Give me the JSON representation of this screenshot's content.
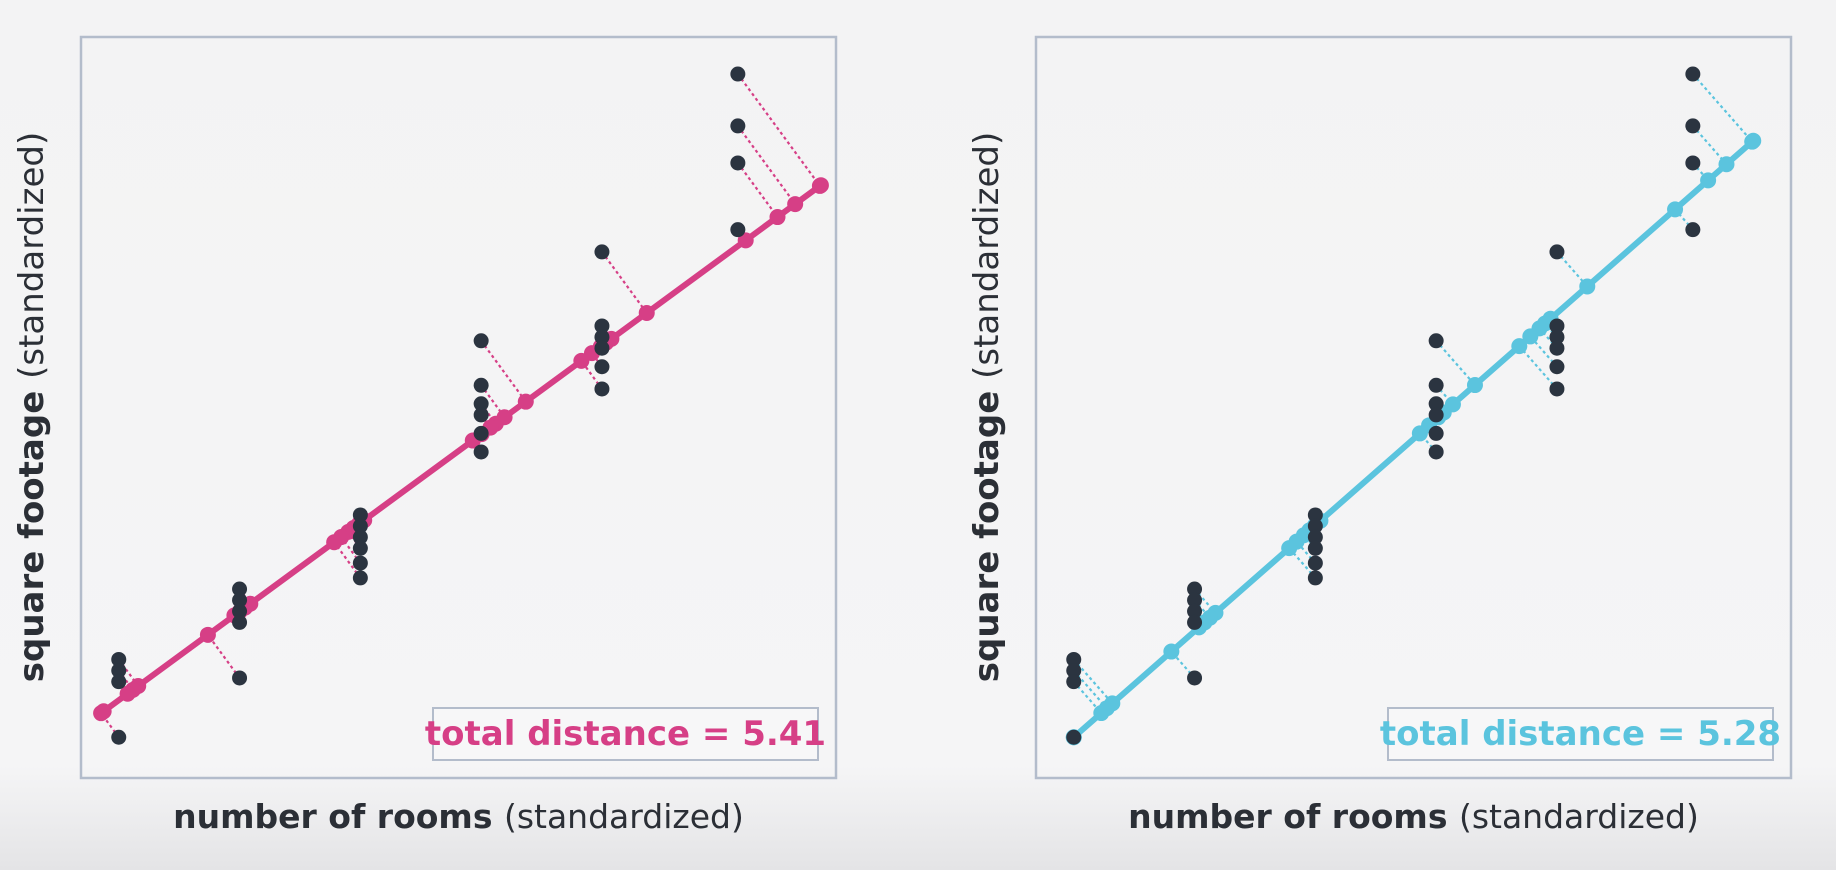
{
  "chart_data": [
    {
      "type": "scatter",
      "xlabel_bold": "number of rooms",
      "xlabel_rest": "(standardized)",
      "ylabel_bold": "square footage",
      "ylabel_rest": "(standardized)",
      "xlim": [
        0,
        1
      ],
      "ylim": [
        0,
        1
      ],
      "grid": false,
      "points": [
        {
          "x": 0.05,
          "y": 0.16
        },
        {
          "x": 0.05,
          "y": 0.145
        },
        {
          "x": 0.05,
          "y": 0.13
        },
        {
          "x": 0.05,
          "y": 0.055
        },
        {
          "x": 0.21,
          "y": 0.255
        },
        {
          "x": 0.21,
          "y": 0.24
        },
        {
          "x": 0.21,
          "y": 0.225
        },
        {
          "x": 0.21,
          "y": 0.21
        },
        {
          "x": 0.21,
          "y": 0.135
        },
        {
          "x": 0.37,
          "y": 0.355
        },
        {
          "x": 0.37,
          "y": 0.34
        },
        {
          "x": 0.37,
          "y": 0.325
        },
        {
          "x": 0.37,
          "y": 0.31
        },
        {
          "x": 0.37,
          "y": 0.29
        },
        {
          "x": 0.37,
          "y": 0.27
        },
        {
          "x": 0.53,
          "y": 0.59
        },
        {
          "x": 0.53,
          "y": 0.53
        },
        {
          "x": 0.53,
          "y": 0.505
        },
        {
          "x": 0.53,
          "y": 0.49
        },
        {
          "x": 0.53,
          "y": 0.465
        },
        {
          "x": 0.53,
          "y": 0.44
        },
        {
          "x": 0.69,
          "y": 0.71
        },
        {
          "x": 0.69,
          "y": 0.61
        },
        {
          "x": 0.69,
          "y": 0.595
        },
        {
          "x": 0.69,
          "y": 0.58
        },
        {
          "x": 0.69,
          "y": 0.555
        },
        {
          "x": 0.69,
          "y": 0.525
        },
        {
          "x": 0.87,
          "y": 0.95
        },
        {
          "x": 0.87,
          "y": 0.88
        },
        {
          "x": 0.87,
          "y": 0.83
        },
        {
          "x": 0.87,
          "y": 0.74
        }
      ],
      "fit_line": {
        "x1": 0.03,
        "y1": 0.09,
        "x2": 0.98,
        "y2": 0.8
      },
      "line_color": "#d63f86",
      "annotation": "total distance = 5.41"
    },
    {
      "type": "scatter",
      "xlabel_bold": "number of rooms",
      "xlabel_rest": "(standardized)",
      "ylabel_bold": "square footage",
      "ylabel_rest": "(standardized)",
      "xlim": [
        0,
        1
      ],
      "ylim": [
        0,
        1
      ],
      "grid": false,
      "points": [
        {
          "x": 0.05,
          "y": 0.16
        },
        {
          "x": 0.05,
          "y": 0.145
        },
        {
          "x": 0.05,
          "y": 0.13
        },
        {
          "x": 0.05,
          "y": 0.055
        },
        {
          "x": 0.21,
          "y": 0.255
        },
        {
          "x": 0.21,
          "y": 0.24
        },
        {
          "x": 0.21,
          "y": 0.225
        },
        {
          "x": 0.21,
          "y": 0.21
        },
        {
          "x": 0.21,
          "y": 0.135
        },
        {
          "x": 0.37,
          "y": 0.355
        },
        {
          "x": 0.37,
          "y": 0.34
        },
        {
          "x": 0.37,
          "y": 0.325
        },
        {
          "x": 0.37,
          "y": 0.31
        },
        {
          "x": 0.37,
          "y": 0.29
        },
        {
          "x": 0.37,
          "y": 0.27
        },
        {
          "x": 0.53,
          "y": 0.59
        },
        {
          "x": 0.53,
          "y": 0.53
        },
        {
          "x": 0.53,
          "y": 0.505
        },
        {
          "x": 0.53,
          "y": 0.49
        },
        {
          "x": 0.53,
          "y": 0.465
        },
        {
          "x": 0.53,
          "y": 0.44
        },
        {
          "x": 0.69,
          "y": 0.71
        },
        {
          "x": 0.69,
          "y": 0.61
        },
        {
          "x": 0.69,
          "y": 0.595
        },
        {
          "x": 0.69,
          "y": 0.58
        },
        {
          "x": 0.69,
          "y": 0.555
        },
        {
          "x": 0.69,
          "y": 0.525
        },
        {
          "x": 0.87,
          "y": 0.95
        },
        {
          "x": 0.87,
          "y": 0.88
        },
        {
          "x": 0.87,
          "y": 0.83
        },
        {
          "x": 0.87,
          "y": 0.74
        }
      ],
      "fit_line": {
        "x1": 0.05,
        "y1": 0.055,
        "x2": 0.95,
        "y2": 0.86
      },
      "line_color": "#5bc4de",
      "annotation": "total distance = 5.28"
    }
  ],
  "colors": {
    "point": "#2b3440",
    "frame": "#b3bccb",
    "label": "#2b2f36"
  }
}
